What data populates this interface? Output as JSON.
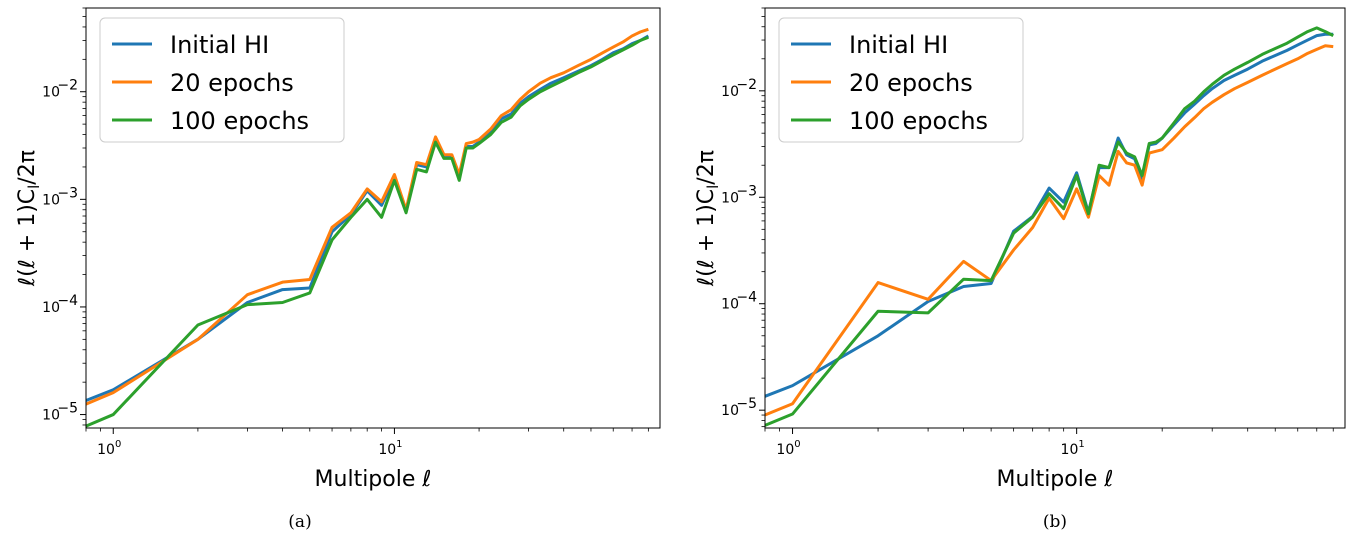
{
  "chart_data": [
    {
      "type": "line",
      "caption": "(a)",
      "xlabel": "Multipole ℓ",
      "ylabel": "ℓ(ℓ + 1)C",
      "ylabel_sub": "l",
      "ylabel_tail": "/2π",
      "xscale": "log",
      "yscale": "log",
      "xlim": [
        0.8,
        88
      ],
      "ylim": [
        7.5e-06,
        0.06
      ],
      "xticks": [
        {
          "value": 1,
          "label": "10",
          "exp": "0"
        },
        {
          "value": 10,
          "label": "10",
          "exp": "1"
        }
      ],
      "yticks": [
        {
          "value": 1e-05,
          "label": "10",
          "exp": "−5"
        },
        {
          "value": 0.0001,
          "label": "10",
          "exp": "−4"
        },
        {
          "value": 0.001,
          "label": "10",
          "exp": "−3"
        },
        {
          "value": 0.01,
          "label": "10",
          "exp": "−2"
        }
      ],
      "grid": false,
      "legend": "top-left",
      "series": [
        {
          "name": "Initial HI",
          "color": "#1f77b4",
          "x": [
            0.8,
            1,
            2,
            3,
            4,
            5,
            6,
            7,
            8,
            9,
            10,
            11,
            12,
            13,
            14,
            15,
            16,
            17,
            18,
            19,
            20,
            22,
            24,
            26,
            28,
            30,
            33,
            36,
            40,
            45,
            50,
            55,
            60,
            65,
            70,
            75,
            80
          ],
          "y": [
            1.35e-05,
            1.7e-05,
            5e-05,
            0.00011,
            0.000145,
            0.00015,
            0.0005,
            0.00072,
            0.0012,
            0.00088,
            0.0016,
            0.00078,
            0.0021,
            0.002,
            0.0036,
            0.0025,
            0.0025,
            0.0016,
            0.0031,
            0.0031,
            0.0034,
            0.0042,
            0.0056,
            0.0062,
            0.0078,
            0.009,
            0.0105,
            0.012,
            0.0135,
            0.0155,
            0.0175,
            0.02,
            0.023,
            0.025,
            0.028,
            0.03,
            0.033
          ]
        },
        {
          "name": "20 epochs",
          "color": "#ff7f0e",
          "x": [
            0.8,
            1,
            2,
            3,
            4,
            5,
            6,
            7,
            8,
            9,
            10,
            11,
            12,
            13,
            14,
            15,
            16,
            17,
            18,
            19,
            20,
            22,
            24,
            26,
            28,
            30,
            33,
            36,
            40,
            45,
            50,
            55,
            60,
            65,
            70,
            75,
            80
          ],
          "y": [
            1.25e-05,
            1.6e-05,
            5e-05,
            0.00013,
            0.00017,
            0.00018,
            0.00055,
            0.00075,
            0.00125,
            0.00095,
            0.0017,
            0.0008,
            0.0022,
            0.0021,
            0.0038,
            0.0026,
            0.0026,
            0.0017,
            0.0033,
            0.0034,
            0.0036,
            0.0045,
            0.006,
            0.0068,
            0.0085,
            0.01,
            0.012,
            0.0135,
            0.015,
            0.0175,
            0.02,
            0.023,
            0.026,
            0.029,
            0.033,
            0.036,
            0.038
          ]
        },
        {
          "name": "100 epochs",
          "color": "#2ca02c",
          "x": [
            0.8,
            1,
            2,
            3,
            4,
            5,
            6,
            7,
            8,
            9,
            10,
            11,
            12,
            13,
            14,
            15,
            16,
            17,
            18,
            19,
            20,
            22,
            24,
            26,
            28,
            30,
            33,
            36,
            40,
            45,
            50,
            55,
            60,
            65,
            70,
            75,
            80
          ],
          "y": [
            7.8e-06,
            1e-05,
            6.8e-05,
            0.000105,
            0.00011,
            0.000135,
            0.00042,
            0.00068,
            0.001,
            0.00068,
            0.0015,
            0.00075,
            0.0019,
            0.0018,
            0.0034,
            0.0024,
            0.0024,
            0.0015,
            0.003,
            0.003,
            0.0033,
            0.004,
            0.0052,
            0.0058,
            0.0074,
            0.0085,
            0.01,
            0.0112,
            0.0128,
            0.015,
            0.017,
            0.0195,
            0.022,
            0.0245,
            0.027,
            0.03,
            0.032
          ]
        }
      ]
    },
    {
      "type": "line",
      "caption": "(b)",
      "xlabel": "Multipole ℓ",
      "ylabel": "ℓ(ℓ + 1)C",
      "ylabel_sub": "l",
      "ylabel_tail": "/2π",
      "xscale": "log",
      "yscale": "log",
      "xlim": [
        0.8,
        88
      ],
      "ylim": [
        6.8e-06,
        0.06
      ],
      "xticks": [
        {
          "value": 1,
          "label": "10",
          "exp": "0"
        },
        {
          "value": 10,
          "label": "10",
          "exp": "1"
        }
      ],
      "yticks": [
        {
          "value": 1e-05,
          "label": "10",
          "exp": "−5"
        },
        {
          "value": 0.0001,
          "label": "10",
          "exp": "−4"
        },
        {
          "value": 0.001,
          "label": "10",
          "exp": "−3"
        },
        {
          "value": 0.01,
          "label": "10",
          "exp": "−2"
        }
      ],
      "grid": false,
      "legend": "top-left",
      "series": [
        {
          "name": "Initial HI",
          "color": "#1f77b4",
          "x": [
            0.8,
            1,
            2,
            3,
            4,
            5,
            6,
            7,
            8,
            9,
            10,
            11,
            12,
            13,
            14,
            15,
            16,
            17,
            18,
            19,
            20,
            22,
            24,
            26,
            28,
            30,
            33,
            36,
            40,
            45,
            50,
            55,
            60,
            65,
            70,
            75,
            80
          ],
          "y": [
            1.35e-05,
            1.7e-05,
            5e-05,
            0.000105,
            0.000145,
            0.000155,
            0.00048,
            0.00066,
            0.00122,
            0.0009,
            0.0017,
            0.00072,
            0.0019,
            0.0019,
            0.0036,
            0.0025,
            0.0023,
            0.0015,
            0.0031,
            0.0032,
            0.0036,
            0.0048,
            0.0062,
            0.0075,
            0.009,
            0.0105,
            0.0125,
            0.014,
            0.016,
            0.019,
            0.0215,
            0.024,
            0.027,
            0.03,
            0.033,
            0.034,
            0.034
          ]
        },
        {
          "name": "20 epochs",
          "color": "#ff7f0e",
          "x": [
            0.8,
            1,
            2,
            3,
            4,
            5,
            6,
            7,
            8,
            9,
            10,
            11,
            12,
            13,
            14,
            15,
            16,
            17,
            18,
            19,
            20,
            22,
            24,
            26,
            28,
            30,
            33,
            36,
            40,
            45,
            50,
            55,
            60,
            65,
            70,
            75,
            80
          ],
          "y": [
            9e-06,
            1.15e-05,
            0.000158,
            0.00011,
            0.00025,
            0.000165,
            0.00032,
            0.00052,
            0.00098,
            0.00063,
            0.0012,
            0.00065,
            0.0016,
            0.0013,
            0.0027,
            0.0021,
            0.002,
            0.0013,
            0.0026,
            0.0027,
            0.0028,
            0.0036,
            0.0046,
            0.0056,
            0.0068,
            0.0078,
            0.0092,
            0.0105,
            0.012,
            0.014,
            0.016,
            0.018,
            0.02,
            0.0225,
            0.0245,
            0.0265,
            0.026
          ]
        },
        {
          "name": "100 epochs",
          "color": "#2ca02c",
          "x": [
            0.8,
            1,
            2,
            3,
            4,
            5,
            6,
            7,
            8,
            9,
            10,
            11,
            12,
            13,
            14,
            15,
            16,
            17,
            18,
            19,
            20,
            22,
            24,
            26,
            28,
            30,
            33,
            36,
            40,
            45,
            50,
            55,
            60,
            65,
            70,
            75,
            80
          ],
          "y": [
            7.2e-06,
            9.2e-06,
            8.5e-05,
            8.2e-05,
            0.00017,
            0.000165,
            0.00046,
            0.00065,
            0.00108,
            0.00078,
            0.0016,
            0.0007,
            0.002,
            0.0019,
            0.0033,
            0.0026,
            0.0024,
            0.0016,
            0.0032,
            0.0033,
            0.0036,
            0.005,
            0.0068,
            0.008,
            0.0098,
            0.0115,
            0.014,
            0.016,
            0.0185,
            0.022,
            0.025,
            0.028,
            0.032,
            0.036,
            0.039,
            0.036,
            0.033
          ]
        }
      ]
    }
  ]
}
